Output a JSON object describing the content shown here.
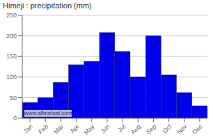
{
  "chart_data": {
    "type": "bar",
    "title": "Himeji : precipitation (mm)",
    "categories": [
      "Jan",
      "Feb",
      "Mar",
      "Apr",
      "May",
      "Jun",
      "Jul",
      "Aug",
      "Sep",
      "Oct",
      "Nov",
      "Dec"
    ],
    "values": [
      38,
      50,
      87,
      130,
      138,
      208,
      162,
      100,
      200,
      105,
      62,
      30
    ],
    "color": "#0000ee",
    "ylim": [
      0,
      250
    ],
    "yticks": [
      0,
      50,
      100,
      150,
      200,
      250
    ],
    "grid": true,
    "annotations": [
      "www.allmetsat.com"
    ]
  }
}
